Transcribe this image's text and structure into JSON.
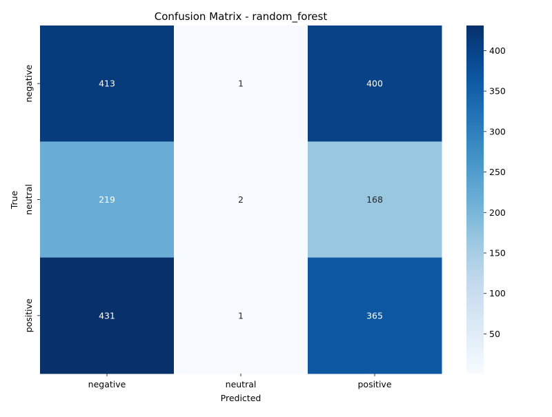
{
  "chart_data": {
    "type": "heatmap",
    "title": "Confusion Matrix - random_forest",
    "xlabel": "Predicted",
    "ylabel": "True",
    "x_categories": [
      "negative",
      "neutral",
      "positive"
    ],
    "y_categories": [
      "negative",
      "neutral",
      "positive"
    ],
    "values": [
      [
        413,
        1,
        400
      ],
      [
        219,
        2,
        168
      ],
      [
        431,
        1,
        365
      ]
    ],
    "colormap": "Blues",
    "colorbar": {
      "min": 1,
      "max": 431,
      "ticks": [
        50,
        100,
        150,
        200,
        250,
        300,
        350,
        400
      ]
    },
    "colors": {
      "annotation_light": "#ffffff",
      "annotation_dark": "#262626"
    }
  }
}
